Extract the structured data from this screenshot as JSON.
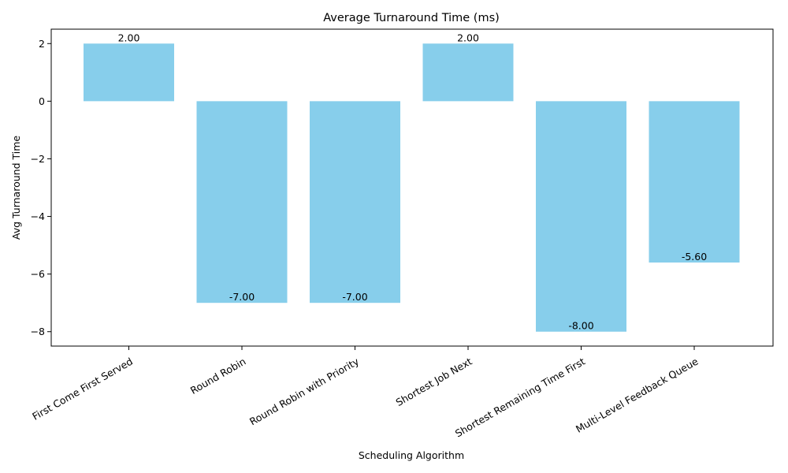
{
  "chart_data": {
    "type": "bar",
    "title": "Average Turnaround Time (ms)",
    "xlabel": "Scheduling Algorithm",
    "ylabel": "Avg Turnaround Time",
    "categories": [
      "First Come First Served",
      "Round Robin",
      "Round Robin with Priority",
      "Shortest Job Next",
      "Shortest Remaining Time First",
      "Multi-Level Feedback Queue"
    ],
    "values": [
      2.0,
      -7.0,
      -7.0,
      2.0,
      -8.0,
      -5.6
    ],
    "value_labels": [
      "2.00",
      "-7.00",
      "-7.00",
      "2.00",
      "-8.00",
      "-5.60"
    ],
    "ylim": [
      -8.5,
      2.5
    ],
    "yticks": [
      2,
      0,
      -2,
      -4,
      -6,
      -8
    ],
    "ytick_labels": [
      "2",
      "0",
      "−2",
      "−4",
      "−6",
      "−8"
    ],
    "grid": false,
    "bar_color": "#87ceeb"
  }
}
